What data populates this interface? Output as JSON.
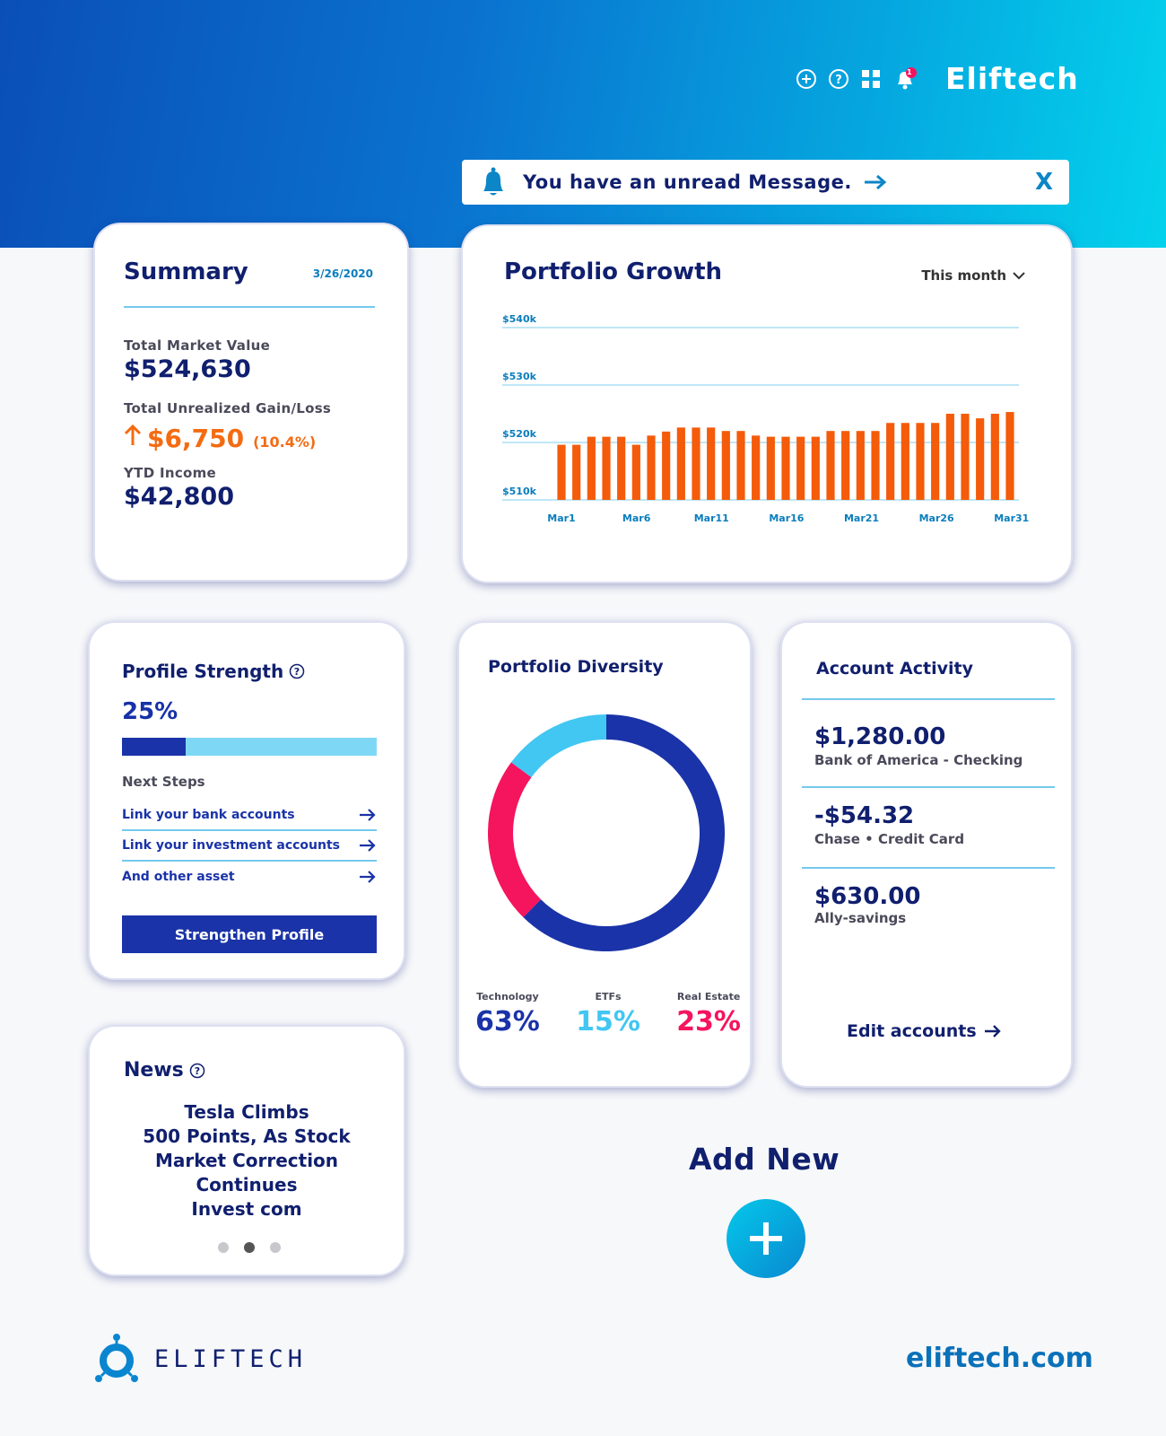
{
  "header": {
    "brand": "Eliftech",
    "icons": [
      "add-circle-icon",
      "help-circle-icon",
      "grid-icon",
      "bell-icon"
    ],
    "notification_count": "1"
  },
  "notice": {
    "message": "You have an unread Message.",
    "close_label": "X"
  },
  "summary": {
    "title": "Summary",
    "date": "3/26/2020",
    "market_value_label": "Total Market Value",
    "market_value": "$524,630",
    "gain_label": "Total Unrealized Gain/Loss",
    "gain_value": "$6,750",
    "gain_pct": "(10.4%)",
    "ytd_label": "YTD Income",
    "ytd_value": "$42,800"
  },
  "growth": {
    "title": "Portfolio Growth",
    "range": "This month"
  },
  "chart_data": {
    "type": "bar",
    "title": "Portfolio Growth",
    "xlabel": "",
    "ylabel": "",
    "ylim": [
      510,
      540
    ],
    "yticks": [
      "$540k",
      "$530k",
      "$520k",
      "$510k"
    ],
    "ytick_values": [
      540,
      530,
      520,
      510
    ],
    "xticks": [
      "Mar1",
      "Mar6",
      "Mar11",
      "Mar16",
      "Mar21",
      "Mar26",
      "Mar31"
    ],
    "categories": [
      "Mar1",
      "Mar2",
      "Mar3",
      "Mar4",
      "Mar5",
      "Mar6",
      "Mar7",
      "Mar8",
      "Mar9",
      "Mar10",
      "Mar11",
      "Mar12",
      "Mar13",
      "Mar14",
      "Mar15",
      "Mar16",
      "Mar17",
      "Mar18",
      "Mar19",
      "Mar20",
      "Mar21",
      "Mar22",
      "Mar23",
      "Mar24",
      "Mar25",
      "Mar26",
      "Mar27",
      "Mar28",
      "Mar29",
      "Mar30",
      "Mar31"
    ],
    "values": [
      519.6,
      519.6,
      521.0,
      521.0,
      521.0,
      519.6,
      521.2,
      521.9,
      522.6,
      522.6,
      522.6,
      522.0,
      522.0,
      521.2,
      521.0,
      521.0,
      521.0,
      521.0,
      522.0,
      522.0,
      522.0,
      522.0,
      523.4,
      523.4,
      523.4,
      523.4,
      525.0,
      525.0,
      524.2,
      525.0,
      525.3
    ]
  },
  "profile": {
    "title": "Profile Strength",
    "percent_label": "25%",
    "percent": 25,
    "next_steps_label": "Next Steps",
    "steps": [
      "Link your bank accounts",
      "Link your investment accounts",
      "And other asset"
    ],
    "button": "Strengthen Profile"
  },
  "news": {
    "title": "News",
    "lines": [
      "Tesla Climbs",
      "500 Points, As Stock",
      "Market Correction",
      "Continues",
      "Invest com"
    ],
    "active_page": 2,
    "pages": 3
  },
  "diversity": {
    "title": "Portfolio Diversity",
    "segments": [
      {
        "name": "Technology",
        "label": "63%",
        "value": 63,
        "color": "#1a33a8"
      },
      {
        "name": "ETFs",
        "label": "15%",
        "value": 15,
        "color": "#42c6f2"
      },
      {
        "name": "Real Estate",
        "label": "23%",
        "value": 23,
        "color": "#f5145e"
      }
    ]
  },
  "activity": {
    "title": "Account Activity",
    "items": [
      {
        "amount": "$1,280.00",
        "desc": "Bank of America - Checking"
      },
      {
        "amount": "-$54.32",
        "desc": "Chase • Credit Card"
      },
      {
        "amount": "$630.00",
        "desc": "Ally-savings"
      }
    ],
    "edit_label": "Edit accounts"
  },
  "add_new": {
    "label": "Add New"
  },
  "footer": {
    "logo_text": "ELIFTECH",
    "site": "eliftech.com"
  }
}
